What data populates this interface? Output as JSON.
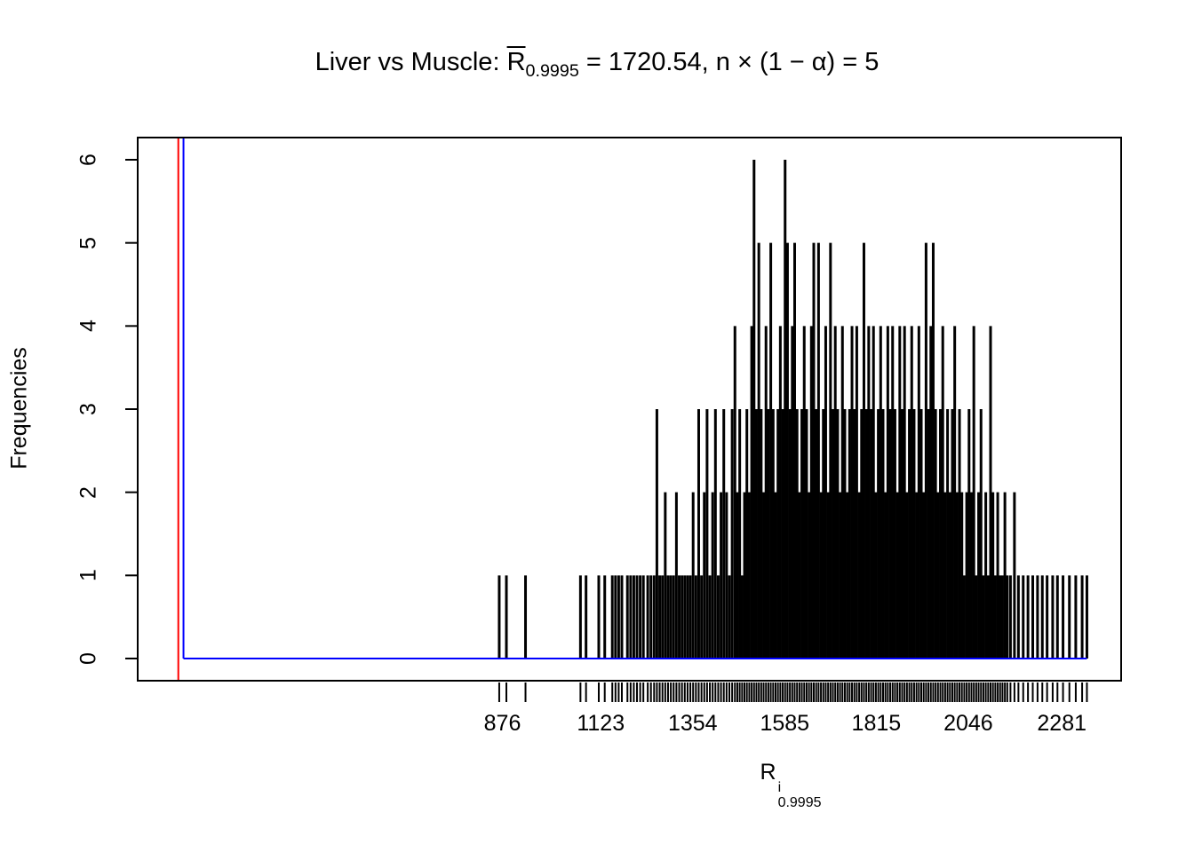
{
  "title": {
    "prefix": "Liver vs Muscle: ",
    "r": "R",
    "r_sub": "0.9995",
    "rest": " = 1720.54,  n × (1 − α) = 5"
  },
  "y_axis_label": "Frequencies",
  "x_axis_label": {
    "base": "R",
    "sup": "i",
    "sub": "0.9995"
  },
  "chart_data": {
    "type": "bar",
    "style": "needle-histogram-of-frequencies",
    "title": "Liver vs Muscle: R̄_0.9995 = 1720.54, n × (1 − α) = 5",
    "xlabel": "R^i_0.9995",
    "ylabel": "Frequencies",
    "xlim": [
      -40,
      2430
    ],
    "ylim": [
      0,
      6
    ],
    "x_ticks": [
      876,
      1123,
      1354,
      1585,
      1815,
      2046,
      2281
    ],
    "y_ticks": [
      0,
      1,
      2,
      3,
      4,
      5,
      6
    ],
    "grid": false,
    "legend": "none",
    "red_vline_x": 62,
    "blue_vline_x": 75,
    "blue_hline_y": 0,
    "blue_hline_x_end": 2344,
    "colors": {
      "spikes": "#000000",
      "red_line": "#ff0000",
      "blue_line": "#0000ff",
      "box": "#000000"
    },
    "spikes": [
      [
        868,
        1
      ],
      [
        886,
        1
      ],
      [
        934,
        1
      ],
      [
        1072,
        1
      ],
      [
        1086,
        1
      ],
      [
        1118,
        1
      ],
      [
        1133,
        1
      ],
      [
        1152,
        1
      ],
      [
        1160,
        1
      ],
      [
        1168,
        1
      ],
      [
        1176,
        1
      ],
      [
        1190,
        1
      ],
      [
        1198,
        1
      ],
      [
        1206,
        1
      ],
      [
        1214,
        1
      ],
      [
        1222,
        1
      ],
      [
        1230,
        1
      ],
      [
        1241,
        1
      ],
      [
        1249,
        1
      ],
      [
        1257,
        1
      ],
      [
        1264,
        3
      ],
      [
        1271,
        1
      ],
      [
        1278,
        1
      ],
      [
        1285,
        2
      ],
      [
        1292,
        1
      ],
      [
        1299,
        1
      ],
      [
        1306,
        1
      ],
      [
        1313,
        2
      ],
      [
        1320,
        1
      ],
      [
        1327,
        1
      ],
      [
        1334,
        1
      ],
      [
        1341,
        1
      ],
      [
        1348,
        1
      ],
      [
        1355,
        2
      ],
      [
        1362,
        1
      ],
      [
        1369,
        3
      ],
      [
        1376,
        1
      ],
      [
        1383,
        2
      ],
      [
        1390,
        3
      ],
      [
        1397,
        1
      ],
      [
        1404,
        2
      ],
      [
        1411,
        3
      ],
      [
        1418,
        1
      ],
      [
        1425,
        2
      ],
      [
        1432,
        3
      ],
      [
        1439,
        2
      ],
      [
        1446,
        1
      ],
      [
        1453,
        3
      ],
      [
        1460,
        4
      ],
      [
        1466,
        2
      ],
      [
        1472,
        3
      ],
      [
        1478,
        1
      ],
      [
        1484,
        2
      ],
      [
        1490,
        3
      ],
      [
        1496,
        2
      ],
      [
        1502,
        4
      ],
      [
        1508,
        6
      ],
      [
        1514,
        3
      ],
      [
        1520,
        5
      ],
      [
        1526,
        3
      ],
      [
        1532,
        2
      ],
      [
        1538,
        4
      ],
      [
        1544,
        3
      ],
      [
        1550,
        5
      ],
      [
        1556,
        3
      ],
      [
        1562,
        2
      ],
      [
        1568,
        3
      ],
      [
        1574,
        4
      ],
      [
        1580,
        3
      ],
      [
        1586,
        6
      ],
      [
        1592,
        5
      ],
      [
        1598,
        3
      ],
      [
        1604,
        4
      ],
      [
        1610,
        5
      ],
      [
        1616,
        3
      ],
      [
        1622,
        2
      ],
      [
        1628,
        3
      ],
      [
        1634,
        4
      ],
      [
        1640,
        3
      ],
      [
        1646,
        2
      ],
      [
        1652,
        4
      ],
      [
        1658,
        5
      ],
      [
        1664,
        3
      ],
      [
        1670,
        5
      ],
      [
        1676,
        2
      ],
      [
        1682,
        3
      ],
      [
        1688,
        4
      ],
      [
        1694,
        2
      ],
      [
        1700,
        5
      ],
      [
        1706,
        3
      ],
      [
        1712,
        4
      ],
      [
        1718,
        3
      ],
      [
        1724,
        2
      ],
      [
        1730,
        4
      ],
      [
        1736,
        3
      ],
      [
        1742,
        2
      ],
      [
        1748,
        3
      ],
      [
        1754,
        4
      ],
      [
        1760,
        3
      ],
      [
        1766,
        4
      ],
      [
        1772,
        2
      ],
      [
        1778,
        3
      ],
      [
        1784,
        5
      ],
      [
        1790,
        3
      ],
      [
        1796,
        4
      ],
      [
        1802,
        3
      ],
      [
        1808,
        4
      ],
      [
        1814,
        2
      ],
      [
        1820,
        3
      ],
      [
        1826,
        4
      ],
      [
        1832,
        3
      ],
      [
        1838,
        2
      ],
      [
        1844,
        4
      ],
      [
        1850,
        3
      ],
      [
        1856,
        4
      ],
      [
        1862,
        3
      ],
      [
        1868,
        2
      ],
      [
        1874,
        4
      ],
      [
        1880,
        3
      ],
      [
        1886,
        4
      ],
      [
        1892,
        2
      ],
      [
        1898,
        3
      ],
      [
        1904,
        4
      ],
      [
        1910,
        3
      ],
      [
        1916,
        2
      ],
      [
        1922,
        4
      ],
      [
        1928,
        3
      ],
      [
        1934,
        2
      ],
      [
        1940,
        5
      ],
      [
        1946,
        3
      ],
      [
        1952,
        4
      ],
      [
        1958,
        5
      ],
      [
        1964,
        3
      ],
      [
        1970,
        2
      ],
      [
        1976,
        3
      ],
      [
        1982,
        4
      ],
      [
        1988,
        2
      ],
      [
        1994,
        3
      ],
      [
        2000,
        2
      ],
      [
        2006,
        3
      ],
      [
        2012,
        4
      ],
      [
        2018,
        2
      ],
      [
        2024,
        3
      ],
      [
        2030,
        2
      ],
      [
        2036,
        1
      ],
      [
        2042,
        2
      ],
      [
        2048,
        3
      ],
      [
        2054,
        2
      ],
      [
        2060,
        4
      ],
      [
        2066,
        1
      ],
      [
        2072,
        2
      ],
      [
        2078,
        3
      ],
      [
        2084,
        1
      ],
      [
        2090,
        2
      ],
      [
        2096,
        1
      ],
      [
        2102,
        4
      ],
      [
        2108,
        2
      ],
      [
        2114,
        1
      ],
      [
        2120,
        2
      ],
      [
        2126,
        1
      ],
      [
        2132,
        1
      ],
      [
        2138,
        2
      ],
      [
        2144,
        1
      ],
      [
        2152,
        1
      ],
      [
        2162,
        2
      ],
      [
        2172,
        1
      ],
      [
        2184,
        1
      ],
      [
        2196,
        1
      ],
      [
        2208,
        1
      ],
      [
        2220,
        1
      ],
      [
        2232,
        1
      ],
      [
        2244,
        1
      ],
      [
        2258,
        1
      ],
      [
        2270,
        1
      ],
      [
        2284,
        1
      ],
      [
        2300,
        1
      ],
      [
        2316,
        1
      ],
      [
        2332,
        1
      ],
      [
        2344,
        1
      ]
    ]
  }
}
